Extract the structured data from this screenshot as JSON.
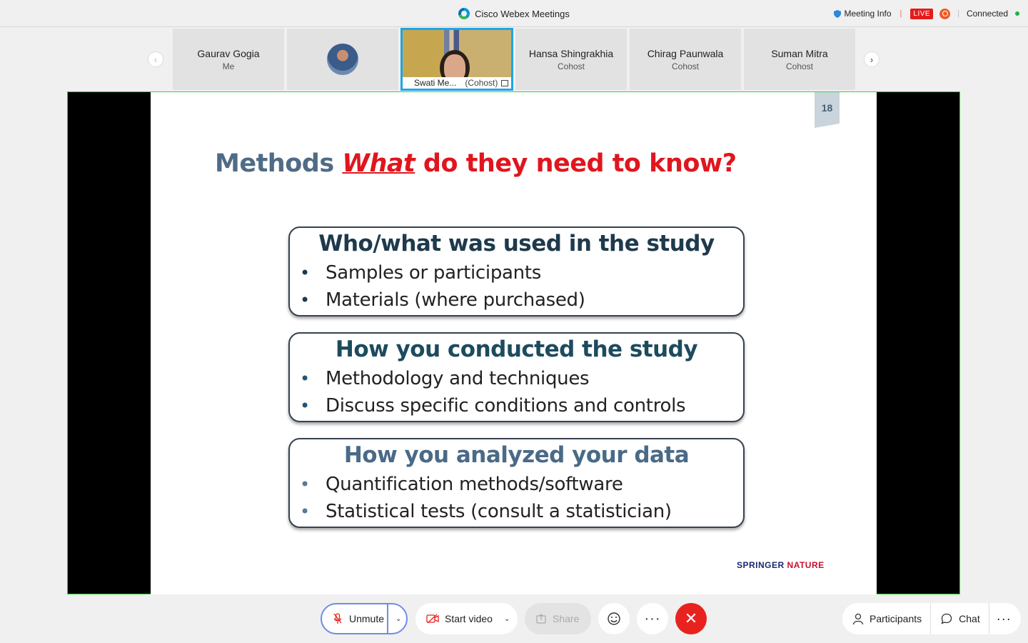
{
  "app": {
    "title": "Cisco Webex Meetings",
    "meeting_info": "Meeting Info",
    "live_badge": "LIVE",
    "status": "Connected"
  },
  "participants": [
    {
      "name": "Gaurav Gogia",
      "role": "Me"
    },
    {
      "name": "",
      "role": "",
      "avatar": "avatar-photo"
    },
    {
      "name": "Swati Me...",
      "role": "(Cohost)",
      "video": true,
      "active": true
    },
    {
      "name": "Hansa Shingrakhia",
      "role": "Cohost"
    },
    {
      "name": "Chirag Paunwala",
      "role": "Cohost"
    },
    {
      "name": "Suman Mitra",
      "role": "Cohost"
    }
  ],
  "slide": {
    "page_number": "18",
    "title_part1": "Methods ",
    "title_em": "What",
    "title_part2": " do they need to know?",
    "boxes": [
      {
        "heading": "Who/what was used in the study",
        "bullets": [
          "Samples or participants",
          "Materials (where purchased)"
        ]
      },
      {
        "heading": "How you conducted the study",
        "bullets": [
          "Methodology and techniques",
          "Discuss specific conditions and controls"
        ]
      },
      {
        "heading": "How you analyzed your data",
        "bullets": [
          "Quantification methods/software",
          "Statistical tests (consult a statistician)"
        ]
      }
    ],
    "brand_part1": "SPRINGER",
    "brand_part2": "NATURE"
  },
  "controls": {
    "unmute": "Unmute",
    "start_video": "Start video",
    "share": "Share",
    "participants": "Participants",
    "chat": "Chat"
  },
  "colors": {
    "accent_blue": "#1ca6e8",
    "end_red": "#e8231f",
    "live_red": "#e41c1c",
    "stage_border": "#2ed82e"
  }
}
